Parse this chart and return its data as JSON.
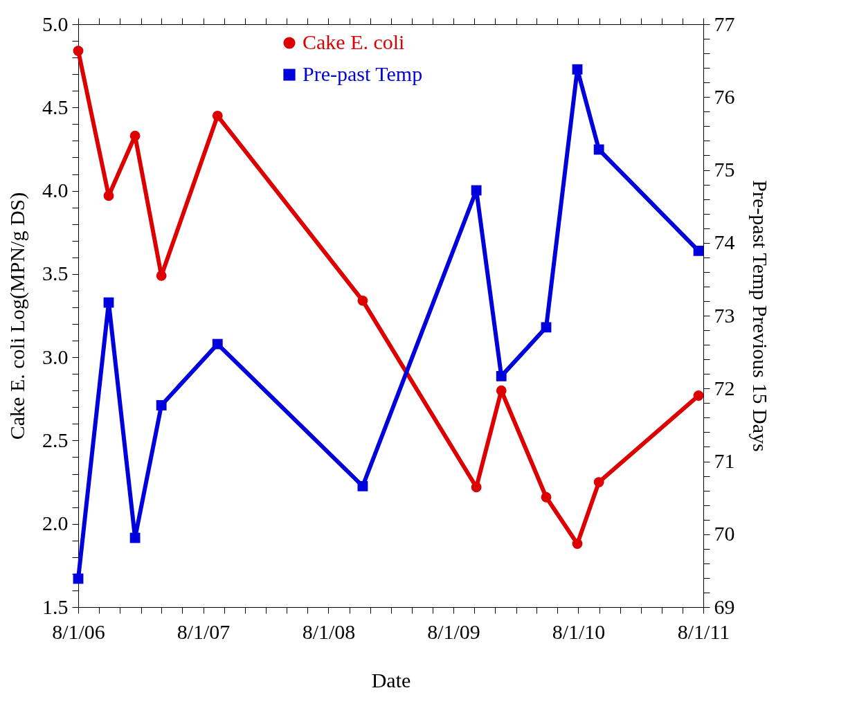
{
  "chart_data": {
    "type": "line",
    "xlabel": "Date",
    "ylabel": "Cake E. coli Log(MPN/g DS)",
    "y2label": "Pre-past Temp Previous 15 Days",
    "legend": "top",
    "grid": false,
    "x": [
      "2006-08-01",
      "2006-10-29",
      "2007-01-14",
      "2007-04-01",
      "2007-09-12",
      "2008-11-09",
      "2009-10-07",
      "2009-12-19",
      "2010-04-29",
      "2010-07-29",
      "2010-09-30",
      "2011-07-18"
    ],
    "series": [
      {
        "name": "Cake E. coli",
        "color": "#dd0000",
        "marker": "circle",
        "values": [
          4.84,
          3.97,
          4.33,
          3.49,
          4.45,
          3.34,
          2.22,
          2.8,
          2.16,
          1.88,
          2.25,
          2.77
        ]
      },
      {
        "name": "Pre-past Temp",
        "color": "#0000dd",
        "marker": "square",
        "axis": "y2",
        "values": [
          69.39,
          73.18,
          69.95,
          71.77,
          72.61,
          70.66,
          74.72,
          72.17,
          72.84,
          76.38,
          75.28,
          73.89
        ]
      }
    ],
    "xlim": [
      "2006-08-01",
      "2011-08-01"
    ],
    "xticks": [
      {
        "value": "2006-08-01",
        "label": "8/1/06"
      },
      {
        "value": "2006-10-01",
        "label": null
      },
      {
        "value": "2006-12-01",
        "label": null
      },
      {
        "value": "2007-02-01",
        "label": null
      },
      {
        "value": "2007-04-01",
        "label": null
      },
      {
        "value": "2007-06-01",
        "label": null
      },
      {
        "value": "2007-08-01",
        "label": "8/1/07"
      },
      {
        "value": "2007-10-01",
        "label": null
      },
      {
        "value": "2007-12-01",
        "label": null
      },
      {
        "value": "2008-02-01",
        "label": null
      },
      {
        "value": "2008-04-01",
        "label": null
      },
      {
        "value": "2008-06-01",
        "label": null
      },
      {
        "value": "2008-08-01",
        "label": "8/1/08"
      },
      {
        "value": "2008-10-01",
        "label": null
      },
      {
        "value": "2008-12-01",
        "label": null
      },
      {
        "value": "2009-02-01",
        "label": null
      },
      {
        "value": "2009-04-01",
        "label": null
      },
      {
        "value": "2009-06-01",
        "label": null
      },
      {
        "value": "2009-08-01",
        "label": "8/1/09"
      },
      {
        "value": "2009-10-01",
        "label": null
      },
      {
        "value": "2009-12-01",
        "label": null
      },
      {
        "value": "2010-02-01",
        "label": null
      },
      {
        "value": "2010-04-01",
        "label": null
      },
      {
        "value": "2010-06-01",
        "label": null
      },
      {
        "value": "2010-08-01",
        "label": "8/1/10"
      },
      {
        "value": "2010-10-01",
        "label": null
      },
      {
        "value": "2010-12-01",
        "label": null
      },
      {
        "value": "2011-02-01",
        "label": null
      },
      {
        "value": "2011-04-01",
        "label": null
      },
      {
        "value": "2011-06-01",
        "label": null
      },
      {
        "value": "2011-08-01",
        "label": "8/1/11"
      }
    ],
    "ylim": [
      1.5,
      5.0
    ],
    "yticks": [
      {
        "value": 1.5,
        "label": "1.5"
      },
      {
        "value": 1.6,
        "label": null
      },
      {
        "value": 1.7,
        "label": null
      },
      {
        "value": 1.8,
        "label": null
      },
      {
        "value": 1.9,
        "label": null
      },
      {
        "value": 2.0,
        "label": "2.0"
      },
      {
        "value": 2.1,
        "label": null
      },
      {
        "value": 2.2,
        "label": null
      },
      {
        "value": 2.3,
        "label": null
      },
      {
        "value": 2.4,
        "label": null
      },
      {
        "value": 2.5,
        "label": "2.5"
      },
      {
        "value": 2.6,
        "label": null
      },
      {
        "value": 2.7,
        "label": null
      },
      {
        "value": 2.8,
        "label": null
      },
      {
        "value": 2.9,
        "label": null
      },
      {
        "value": 3.0,
        "label": "3.0"
      },
      {
        "value": 3.1,
        "label": null
      },
      {
        "value": 3.2,
        "label": null
      },
      {
        "value": 3.3,
        "label": null
      },
      {
        "value": 3.4,
        "label": null
      },
      {
        "value": 3.5,
        "label": "3.5"
      },
      {
        "value": 3.6,
        "label": null
      },
      {
        "value": 3.7,
        "label": null
      },
      {
        "value": 3.8,
        "label": null
      },
      {
        "value": 3.9,
        "label": null
      },
      {
        "value": 4.0,
        "label": "4.0"
      },
      {
        "value": 4.1,
        "label": null
      },
      {
        "value": 4.2,
        "label": null
      },
      {
        "value": 4.3,
        "label": null
      },
      {
        "value": 4.4,
        "label": null
      },
      {
        "value": 4.5,
        "label": "4.5"
      },
      {
        "value": 4.6,
        "label": null
      },
      {
        "value": 4.7,
        "label": null
      },
      {
        "value": 4.8,
        "label": null
      },
      {
        "value": 4.9,
        "label": null
      },
      {
        "value": 5.0,
        "label": "5.0"
      }
    ],
    "y2lim": [
      69,
      77
    ],
    "y2ticks": [
      69,
      {
        "value": 69.2,
        "label": null
      },
      {
        "value": 69.4,
        "label": null
      },
      {
        "value": 69.6,
        "label": null
      },
      {
        "value": 69.8,
        "label": null
      },
      70,
      {
        "value": 70.2,
        "label": null
      },
      {
        "value": 70.4,
        "label": null
      },
      {
        "value": 70.6,
        "label": null
      },
      {
        "value": 70.8,
        "label": null
      },
      71,
      {
        "value": 71.2,
        "label": null
      },
      {
        "value": 71.4,
        "label": null
      },
      {
        "value": 71.6,
        "label": null
      },
      {
        "value": 71.8,
        "label": null
      },
      72,
      {
        "value": 72.2,
        "label": null
      },
      {
        "value": 72.4,
        "label": null
      },
      {
        "value": 72.6,
        "label": null
      },
      {
        "value": 72.8,
        "label": null
      },
      73,
      {
        "value": 73.2,
        "label": null
      },
      {
        "value": 73.4,
        "label": null
      },
      {
        "value": 73.6,
        "label": null
      },
      {
        "value": 73.8,
        "label": null
      },
      74,
      {
        "value": 74.2,
        "label": null
      },
      {
        "value": 74.4,
        "label": null
      },
      {
        "value": 74.6,
        "label": null
      },
      {
        "value": 74.8,
        "label": null
      },
      75,
      {
        "value": 75.2,
        "label": null
      },
      {
        "value": 75.4,
        "label": null
      },
      {
        "value": 75.6,
        "label": null
      },
      {
        "value": 75.8,
        "label": null
      },
      76,
      {
        "value": 76.2,
        "label": null
      },
      {
        "value": 76.4,
        "label": null
      },
      {
        "value": 76.6,
        "label": null
      },
      {
        "value": 76.8,
        "label": null
      },
      77
    ]
  }
}
